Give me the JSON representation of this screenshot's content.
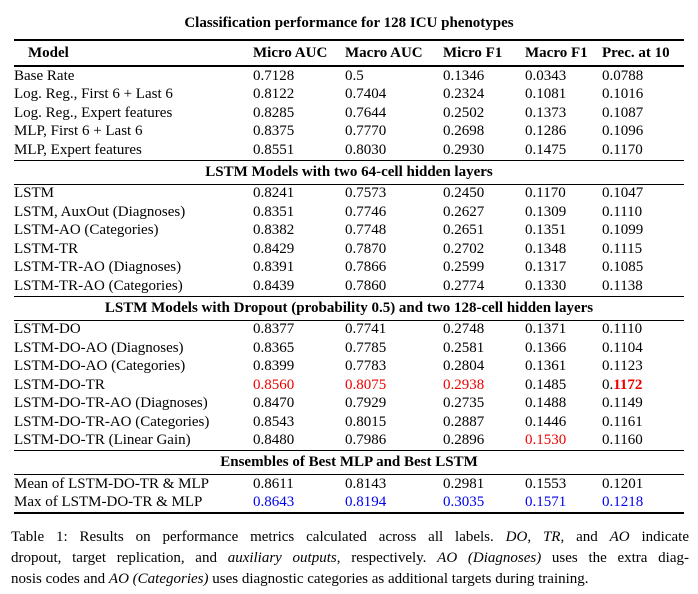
{
  "table": {
    "title": "Classification performance for 128 ICU phenotypes",
    "columns": [
      "Model",
      "Micro AUC",
      "Macro AUC",
      "Micro F1",
      "Macro F1",
      "Prec. at 10"
    ],
    "sections": [
      {
        "header": null,
        "rows": [
          {
            "model": "Base Rate",
            "values": [
              "0.7128",
              "0.5",
              "0.1346",
              "0.0343",
              "0.0788"
            ],
            "styles": [
              "",
              "",
              "",
              "",
              ""
            ]
          },
          {
            "model": "Log. Reg., First 6 + Last 6",
            "values": [
              "0.8122",
              "0.7404",
              "0.2324",
              "0.1081",
              "0.1016"
            ],
            "styles": [
              "",
              "",
              "",
              "",
              ""
            ]
          },
          {
            "model": "Log. Reg., Expert features",
            "values": [
              "0.8285",
              "0.7644",
              "0.2502",
              "0.1373",
              "0.1087"
            ],
            "styles": [
              "",
              "",
              "",
              "",
              ""
            ]
          },
          {
            "model": "MLP, First 6 + Last 6",
            "values": [
              "0.8375",
              "0.7770",
              "0.2698",
              "0.1286",
              "0.1096"
            ],
            "styles": [
              "",
              "",
              "",
              "",
              ""
            ]
          },
          {
            "model": "MLP, Expert features",
            "values": [
              "0.8551",
              "0.8030",
              "0.2930",
              "0.1475",
              "0.1170"
            ],
            "styles": [
              "bold",
              "bold",
              "bold",
              "bold",
              "bold"
            ]
          }
        ]
      },
      {
        "header": "LSTM Models with two 64-cell hidden layers",
        "rows": [
          {
            "model": "LSTM",
            "values": [
              "0.8241",
              "0.7573",
              "0.2450",
              "0.1170",
              "0.1047"
            ],
            "styles": [
              "",
              "",
              "",
              "",
              ""
            ]
          },
          {
            "model": "LSTM, AuxOut (Diagnoses)",
            "values": [
              "0.8351",
              "0.7746",
              "0.2627",
              "0.1309",
              "0.1110"
            ],
            "styles": [
              "",
              "",
              "",
              "",
              ""
            ]
          },
          {
            "model": "LSTM-AO (Categories)",
            "values": [
              "0.8382",
              "0.7748",
              "0.2651",
              "0.1351",
              "0.1099"
            ],
            "styles": [
              "",
              "",
              "",
              "",
              ""
            ]
          },
          {
            "model": "LSTM-TR",
            "values": [
              "0.8429",
              "0.7870",
              "0.2702",
              "0.1348",
              "0.1115"
            ],
            "styles": [
              "",
              "",
              "",
              "",
              ""
            ]
          },
          {
            "model": "LSTM-TR-AO (Diagnoses)",
            "values": [
              "0.8391",
              "0.7866",
              "0.2599",
              "0.1317",
              "0.1085"
            ],
            "styles": [
              "",
              "",
              "",
              "",
              ""
            ]
          },
          {
            "model": "LSTM-TR-AO (Categories)",
            "values": [
              "0.8439",
              "0.7860",
              "0.2774",
              "0.1330",
              "0.1138"
            ],
            "styles": [
              "",
              "",
              "",
              "",
              ""
            ]
          }
        ]
      },
      {
        "header": "LSTM Models with Dropout (probability 0.5) and two 128-cell hidden layers",
        "rows": [
          {
            "model": "LSTM-DO",
            "values": [
              "0.8377",
              "0.7741",
              "0.2748",
              "0.1371",
              "0.1110"
            ],
            "styles": [
              "",
              "",
              "",
              "",
              ""
            ]
          },
          {
            "model": "LSTM-DO-AO (Diagnoses)",
            "values": [
              "0.8365",
              "0.7785",
              "0.2581",
              "0.1366",
              "0.1104"
            ],
            "styles": [
              "",
              "",
              "",
              "",
              ""
            ]
          },
          {
            "model": "LSTM-DO-AO (Categories)",
            "values": [
              "0.8399",
              "0.7783",
              "0.2804",
              "0.1361",
              "0.1123"
            ],
            "styles": [
              "",
              "",
              "",
              "",
              ""
            ]
          },
          {
            "model": "LSTM-DO-TR",
            "values": [
              "0.8560",
              "0.8075",
              "0.2938",
              "0.1485",
              "0.1172"
            ],
            "styles": [
              "red",
              "red",
              "red",
              "",
              "redpart"
            ]
          },
          {
            "model": "LSTM-DO-TR-AO (Diagnoses)",
            "values": [
              "0.8470",
              "0.7929",
              "0.2735",
              "0.1488",
              "0.1149"
            ],
            "styles": [
              "",
              "",
              "",
              "",
              ""
            ]
          },
          {
            "model": "LSTM-DO-TR-AO (Categories)",
            "values": [
              "0.8543",
              "0.8015",
              "0.2887",
              "0.1446",
              "0.1161"
            ],
            "styles": [
              "",
              "",
              "",
              "",
              ""
            ]
          },
          {
            "model": "LSTM-DO-TR (Linear Gain)",
            "values": [
              "0.8480",
              "0.7986",
              "0.2896",
              "0.1530",
              "0.1160"
            ],
            "styles": [
              "",
              "",
              "",
              "red",
              ""
            ]
          }
        ]
      },
      {
        "header": "Ensembles of Best MLP and Best LSTM",
        "rows": [
          {
            "model": "Mean of LSTM-DO-TR & MLP",
            "values": [
              "0.8611",
              "0.8143",
              "0.2981",
              "0.1553",
              "0.1201"
            ],
            "styles": [
              "",
              "",
              "",
              "",
              ""
            ]
          },
          {
            "model": "Max of LSTM-DO-TR & MLP",
            "values": [
              "0.8643",
              "0.8194",
              "0.3035",
              "0.1571",
              "0.1218"
            ],
            "styles": [
              "blue",
              "blue",
              "blue",
              "blue",
              "blue"
            ]
          }
        ]
      }
    ]
  },
  "caption": {
    "lines": [
      [
        {
          "t": "Table 1: Results on performance metrics calculated across all labels. ",
          "i": false
        },
        {
          "t": "DO",
          "i": true
        },
        {
          "t": ", ",
          "i": false
        },
        {
          "t": "TR",
          "i": true
        },
        {
          "t": ", and ",
          "i": false
        },
        {
          "t": "AO",
          "i": true
        },
        {
          "t": " indicate",
          "i": false
        }
      ],
      [
        {
          "t": "dropout, target replication, and ",
          "i": false
        },
        {
          "t": "auxiliary outputs",
          "i": true
        },
        {
          "t": ", respectively. ",
          "i": false
        },
        {
          "t": "AO (Diagnoses)",
          "i": true
        },
        {
          "t": " uses the extra diag-",
          "i": false
        }
      ],
      [
        {
          "t": "nosis codes and ",
          "i": false
        },
        {
          "t": "AO (Categories)",
          "i": true
        },
        {
          "t": " uses diagnostic categories as additional targets during training.",
          "i": false
        }
      ]
    ]
  },
  "colors": {
    "highlight_red": "#ee0000",
    "highlight_blue": "#0000ee",
    "text": "#000000",
    "background": "#ffffff"
  }
}
